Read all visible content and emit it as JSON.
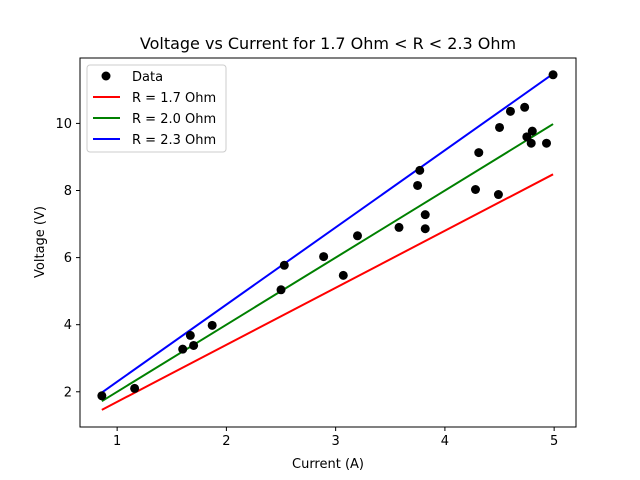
{
  "chart_data": {
    "type": "scatter",
    "title": "Voltage vs Current for 1.7 Ohm < R < 2.3 Ohm",
    "xlabel": "Current (A)",
    "ylabel": "Voltage (V)",
    "xlim": [
      0.66,
      5.2
    ],
    "ylim": [
      0.95,
      11.95
    ],
    "xticks": [
      1,
      2,
      3,
      4,
      5
    ],
    "yticks": [
      2,
      4,
      6,
      8,
      10
    ],
    "grid": false,
    "legend_position": "top-left",
    "points": {
      "name": "Data",
      "color": "#000000",
      "x": [
        0.86,
        1.16,
        1.6,
        1.67,
        1.7,
        1.87,
        2.5,
        2.53,
        2.89,
        3.07,
        3.2,
        3.58,
        3.75,
        3.77,
        3.82,
        3.82,
        4.28,
        4.31,
        4.49,
        4.5,
        4.6,
        4.73,
        4.75,
        4.79,
        4.8,
        4.93,
        4.99
      ],
      "y": [
        1.88,
        2.1,
        3.27,
        3.68,
        3.38,
        3.98,
        5.04,
        5.77,
        6.03,
        5.47,
        6.65,
        6.9,
        8.15,
        8.6,
        7.28,
        6.86,
        8.03,
        9.13,
        7.88,
        9.88,
        10.36,
        10.48,
        9.6,
        9.41,
        9.77,
        9.41,
        11.45
      ]
    },
    "series": [
      {
        "name": "R = 1.7 Ohm",
        "color": "#ff0000",
        "x": [
          0.86,
          4.99
        ],
        "y": [
          1.462,
          8.483
        ]
      },
      {
        "name": "R = 2.0 Ohm",
        "color": "#008000",
        "x": [
          0.86,
          4.99
        ],
        "y": [
          1.72,
          9.98
        ]
      },
      {
        "name": "R = 2.3 Ohm",
        "color": "#0000ff",
        "x": [
          0.86,
          4.99
        ],
        "y": [
          1.978,
          11.477
        ]
      }
    ]
  }
}
